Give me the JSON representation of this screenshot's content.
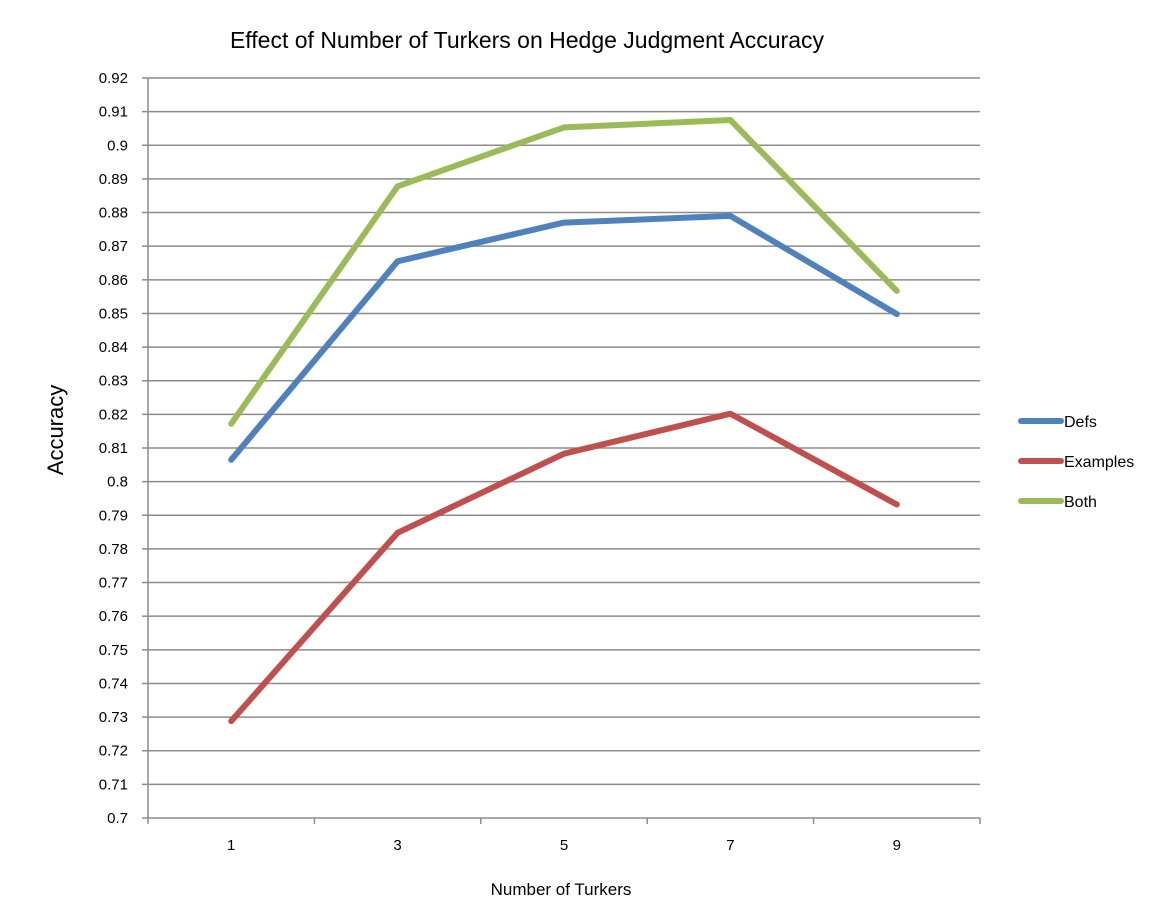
{
  "chart_data": {
    "type": "line",
    "title": "Effect of Number of Turkers on Hedge Judgment Accuracy",
    "xlabel": "Number of Turkers",
    "ylabel": "Accuracy",
    "categories": [
      "1",
      "3",
      "5",
      "7",
      "9"
    ],
    "ylim": [
      0.7,
      0.92
    ],
    "yticks": [
      "0.7",
      "0.71",
      "0.72",
      "0.73",
      "0.74",
      "0.75",
      "0.76",
      "0.77",
      "0.78",
      "0.79",
      "0.8",
      "0.81",
      "0.82",
      "0.83",
      "0.84",
      "0.85",
      "0.86",
      "0.87",
      "0.88",
      "0.89",
      "0.9",
      "0.91",
      "0.92"
    ],
    "grid": true,
    "legend_position": "right",
    "series": [
      {
        "name": "Defs",
        "color": "#4F81BD",
        "values": [
          0.8065,
          0.8655,
          0.877,
          0.879,
          0.8498
        ]
      },
      {
        "name": "Examples",
        "color": "#C0504D",
        "values": [
          0.7288,
          0.7848,
          0.8083,
          0.8202,
          0.7932
        ]
      },
      {
        "name": "Both",
        "color": "#9BBB59",
        "values": [
          0.8172,
          0.8878,
          0.9053,
          0.9075,
          0.8567
        ]
      }
    ]
  }
}
